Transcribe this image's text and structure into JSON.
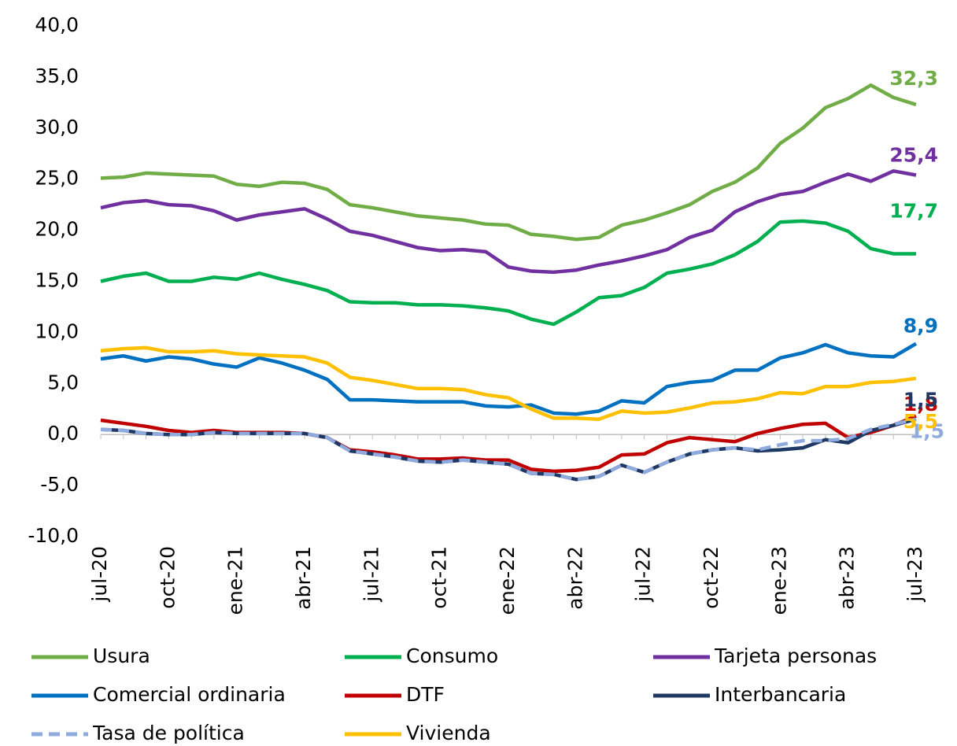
{
  "chart_data": {
    "type": "line",
    "categories": [
      "jul-20",
      null,
      null,
      "oct-20",
      null,
      null,
      "ene-21",
      null,
      null,
      "abr-21",
      null,
      null,
      "jul-21",
      null,
      null,
      "oct-21",
      null,
      null,
      "ene-22",
      null,
      null,
      "abr-22",
      null,
      null,
      "jul-22",
      null,
      null,
      "oct-22",
      null,
      null,
      "ene-23",
      null,
      null,
      "abr-23",
      null,
      null,
      "jul-23"
    ],
    "ylim": [
      -10,
      40
    ],
    "yticks": [
      {
        "value": -10,
        "label": "-10,0"
      },
      {
        "value": -5,
        "label": "-5,0"
      },
      {
        "value": 0,
        "label": "0,0"
      },
      {
        "value": 5,
        "label": "5,0"
      },
      {
        "value": 10,
        "label": "10,0"
      },
      {
        "value": 15,
        "label": "15,0"
      },
      {
        "value": 20,
        "label": "20,0"
      },
      {
        "value": 25,
        "label": "25,0"
      },
      {
        "value": 30,
        "label": "30,0"
      },
      {
        "value": 35,
        "label": "35,0"
      },
      {
        "value": 40,
        "label": "40,0"
      }
    ],
    "grid": false,
    "legend": "bottom",
    "series": [
      {
        "name": "Usura",
        "color": "#70ad47",
        "values": [
          25.1,
          25.2,
          25.6,
          25.5,
          25.4,
          25.3,
          24.5,
          24.3,
          24.7,
          24.6,
          24.0,
          22.5,
          22.2,
          21.8,
          21.4,
          21.2,
          21.0,
          20.6,
          20.5,
          19.6,
          19.4,
          19.1,
          19.3,
          20.5,
          21.0,
          21.7,
          22.5,
          23.8,
          24.7,
          26.1,
          28.5,
          30.0,
          32.0,
          32.9,
          34.2,
          33.0,
          32.3
        ],
        "value_labels": [
          null,
          null,
          null,
          null,
          null,
          null,
          null,
          null,
          null,
          null,
          null,
          null,
          null,
          null,
          null,
          null,
          null,
          null,
          null,
          null,
          null,
          null,
          null,
          null,
          null,
          null,
          null,
          null,
          null,
          null,
          null,
          null,
          null,
          null,
          null,
          null,
          "32,3"
        ]
      },
      {
        "name": "Consumo",
        "color": "#00b050",
        "values": [
          15.0,
          15.5,
          15.8,
          15.0,
          15.0,
          15.4,
          15.2,
          15.8,
          15.2,
          14.7,
          14.1,
          13.0,
          12.9,
          12.9,
          12.7,
          12.7,
          12.6,
          12.4,
          12.1,
          11.3,
          10.8,
          12.0,
          13.4,
          13.6,
          14.4,
          15.8,
          16.2,
          16.7,
          17.6,
          18.9,
          20.8,
          20.9,
          20.7,
          19.9,
          18.2,
          17.7,
          17.7
        ],
        "value_labels": [
          null,
          null,
          null,
          null,
          null,
          null,
          null,
          null,
          null,
          null,
          null,
          null,
          null,
          null,
          null,
          null,
          null,
          null,
          null,
          null,
          null,
          null,
          null,
          null,
          null,
          null,
          null,
          null,
          null,
          null,
          null,
          null,
          null,
          null,
          null,
          null,
          "17,7"
        ]
      },
      {
        "name": "Tarjeta personas",
        "color": "#7030a0",
        "values": [
          22.2,
          22.7,
          22.9,
          22.5,
          22.4,
          21.9,
          21.0,
          21.5,
          21.8,
          22.1,
          21.1,
          19.9,
          19.5,
          18.9,
          18.3,
          18.0,
          18.1,
          17.9,
          16.4,
          16.0,
          15.9,
          16.1,
          16.6,
          17.0,
          17.5,
          18.1,
          19.3,
          20.0,
          21.8,
          22.8,
          23.5,
          23.8,
          24.7,
          25.5,
          24.8,
          25.8,
          25.4
        ],
        "value_labels": [
          null,
          null,
          null,
          null,
          null,
          null,
          null,
          null,
          null,
          null,
          null,
          null,
          null,
          null,
          null,
          null,
          null,
          null,
          null,
          null,
          null,
          null,
          null,
          null,
          null,
          null,
          null,
          null,
          null,
          null,
          null,
          null,
          null,
          null,
          null,
          null,
          "25,4"
        ]
      },
      {
        "name": "Comercial ordinaria",
        "color": "#0070c0",
        "values": [
          7.4,
          7.7,
          7.2,
          7.6,
          7.4,
          6.9,
          6.6,
          7.5,
          7.0,
          6.3,
          5.4,
          3.4,
          3.4,
          3.3,
          3.2,
          3.2,
          3.2,
          2.8,
          2.7,
          2.9,
          2.1,
          2.0,
          2.3,
          3.3,
          3.1,
          4.7,
          5.1,
          5.3,
          6.3,
          6.3,
          7.5,
          8.0,
          8.8,
          8.0,
          7.7,
          7.6,
          8.9
        ],
        "value_labels": [
          null,
          null,
          null,
          null,
          null,
          null,
          null,
          null,
          null,
          null,
          null,
          null,
          null,
          null,
          null,
          null,
          null,
          null,
          null,
          null,
          null,
          null,
          null,
          null,
          null,
          null,
          null,
          null,
          null,
          null,
          null,
          null,
          null,
          null,
          null,
          null,
          "8,9"
        ]
      },
      {
        "name": "DTF",
        "color": "#c00000",
        "values": [
          1.4,
          1.1,
          0.8,
          0.4,
          0.2,
          0.4,
          0.2,
          0.2,
          0.2,
          0.1,
          -0.3,
          -1.5,
          -1.7,
          -2.0,
          -2.4,
          -2.4,
          -2.3,
          -2.5,
          -2.5,
          -3.4,
          -3.6,
          -3.5,
          -3.2,
          -2.0,
          -1.9,
          -0.8,
          -0.3,
          -0.5,
          -0.7,
          0.1,
          0.6,
          1.0,
          1.1,
          -0.3,
          0.2,
          0.9,
          1.8
        ],
        "value_labels": [
          null,
          null,
          null,
          null,
          null,
          null,
          null,
          null,
          null,
          null,
          null,
          null,
          null,
          null,
          null,
          null,
          null,
          null,
          null,
          null,
          null,
          null,
          null,
          null,
          null,
          null,
          null,
          null,
          null,
          null,
          null,
          null,
          null,
          null,
          null,
          null,
          "1,8"
        ]
      },
      {
        "name": "Interbancaria",
        "color": "#1f3864",
        "values": [
          0.5,
          0.4,
          0.1,
          0.0,
          0.0,
          0.2,
          0.1,
          0.1,
          0.1,
          0.1,
          -0.3,
          -1.6,
          -1.9,
          -2.2,
          -2.6,
          -2.7,
          -2.5,
          -2.7,
          -2.9,
          -3.8,
          -3.9,
          -4.4,
          -4.1,
          -3.0,
          -3.7,
          -2.7,
          -1.9,
          -1.5,
          -1.3,
          -1.6,
          -1.5,
          -1.3,
          -0.5,
          -0.8,
          0.4,
          0.9,
          1.5
        ],
        "value_labels": [
          null,
          null,
          null,
          null,
          null,
          null,
          null,
          null,
          null,
          null,
          null,
          null,
          null,
          null,
          null,
          null,
          null,
          null,
          null,
          null,
          null,
          null,
          null,
          null,
          null,
          null,
          null,
          null,
          null,
          null,
          null,
          null,
          null,
          null,
          null,
          null,
          "1,5"
        ]
      },
      {
        "name": "Tasa de política",
        "color": "#8faadc",
        "dashed": true,
        "values": [
          0.5,
          0.4,
          0.1,
          0.0,
          0.0,
          0.2,
          0.1,
          0.1,
          0.1,
          0.1,
          -0.3,
          -1.6,
          -1.9,
          -2.2,
          -2.6,
          -2.7,
          -2.5,
          -2.7,
          -2.9,
          -3.8,
          -3.9,
          -4.4,
          -4.1,
          -3.0,
          -3.7,
          -2.7,
          -1.9,
          -1.5,
          -1.3,
          -1.5,
          -1.0,
          -0.6,
          -0.6,
          -0.4,
          0.5,
          1.0,
          1.5
        ],
        "value_labels": [
          null,
          null,
          null,
          null,
          null,
          null,
          null,
          null,
          null,
          null,
          null,
          null,
          null,
          null,
          null,
          null,
          null,
          null,
          null,
          null,
          null,
          null,
          null,
          null,
          null,
          null,
          null,
          null,
          null,
          null,
          null,
          null,
          null,
          null,
          null,
          null,
          "1,5"
        ]
      },
      {
        "name": "Vivienda",
        "color": "#ffc000",
        "values": [
          8.2,
          8.4,
          8.5,
          8.1,
          8.1,
          8.2,
          7.9,
          7.8,
          7.7,
          7.6,
          7.0,
          5.6,
          5.3,
          4.9,
          4.5,
          4.5,
          4.4,
          3.9,
          3.6,
          2.5,
          1.6,
          1.6,
          1.5,
          2.3,
          2.1,
          2.2,
          2.6,
          3.1,
          3.2,
          3.5,
          4.1,
          4.0,
          4.7,
          4.7,
          5.1,
          5.2,
          5.5
        ],
        "value_labels": [
          null,
          null,
          null,
          null,
          null,
          null,
          null,
          null,
          null,
          null,
          null,
          null,
          null,
          null,
          null,
          null,
          null,
          null,
          null,
          null,
          null,
          null,
          null,
          null,
          null,
          null,
          null,
          null,
          null,
          null,
          null,
          null,
          null,
          null,
          null,
          null,
          "5,5"
        ]
      }
    ]
  }
}
